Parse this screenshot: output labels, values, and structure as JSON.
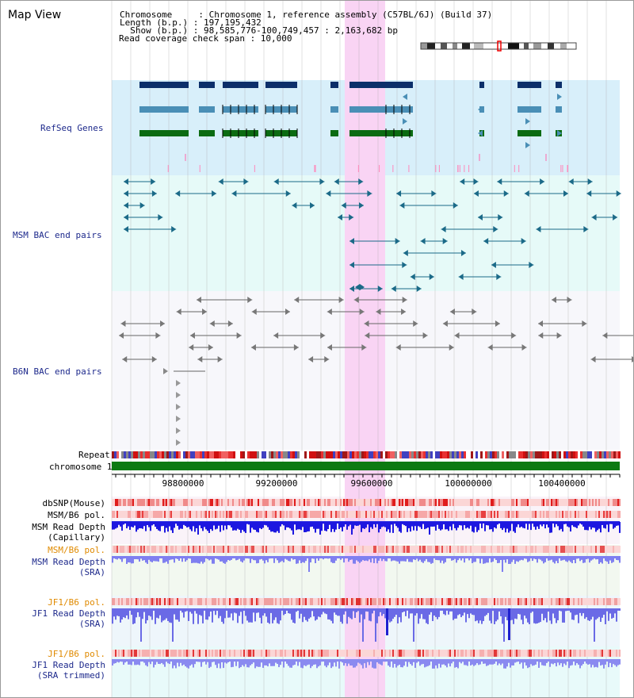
{
  "title": "Map View",
  "header": {
    "chromosome_line": "Chromosome     : Chromosome 1, reference assembly (C57BL/6J) (Build 37)",
    "length_line": "Length (b.p.) : 197,195,432",
    "show_line": "  Show (b.p.) : 98,585,776-100,749,457 : 2,163,682 bp",
    "span_line": "Read coverage check span : 10,000"
  },
  "tracks": {
    "refseq": "RefSeq Genes",
    "msm_bac": "MSM BAC end pairs",
    "b6n_bac": "B6N BAC end pairs",
    "repeat": "Repeat",
    "chromosome": "chromosome 1"
  },
  "axis": {
    "ticks": [
      "98800000",
      "99200000",
      "99600000",
      "100000000",
      "100400000"
    ],
    "start": 98585776,
    "end": 100749457
  },
  "lower_tracks": {
    "dbsnp": "dbSNP(Mouse)",
    "msm_b6_pol": "MSM/B6 pol.",
    "msm_read_depth_1": "MSM Read Depth",
    "msm_read_depth_2": "(Capillary)",
    "msm_b6_pol_sra": "MSM/B6 pol.",
    "msm_sra_1": "MSM Read Depth",
    "msm_sra_2": "(SRA)",
    "jf1_b6_pol": "JF1/B6 pol.",
    "jf1_sra_1": "JF1 Read Depth",
    "jf1_sra_2": "(SRA)",
    "jf1_b6_pol_2": "JF1/B6 pol.",
    "jf1_trim_1": "JF1 Read Depth",
    "jf1_trim_2": "(SRA trimmed)"
  },
  "colors": {
    "highlight": "#f9d4f4",
    "refseq_bg": "#d8effa",
    "msm_bg": "#e6faf8",
    "gene_dark": "#0c2f6a",
    "gene_mid": "#4a8fb6",
    "gene_green": "#0b6b12",
    "msm_pair": "#1b6a88",
    "b6n_pair": "#666666",
    "depth_blue": "#1d17e0",
    "depth_light": "#7f7ff0",
    "orange_label": "#e08a00",
    "navy_label": "#1e2a8c"
  }
}
